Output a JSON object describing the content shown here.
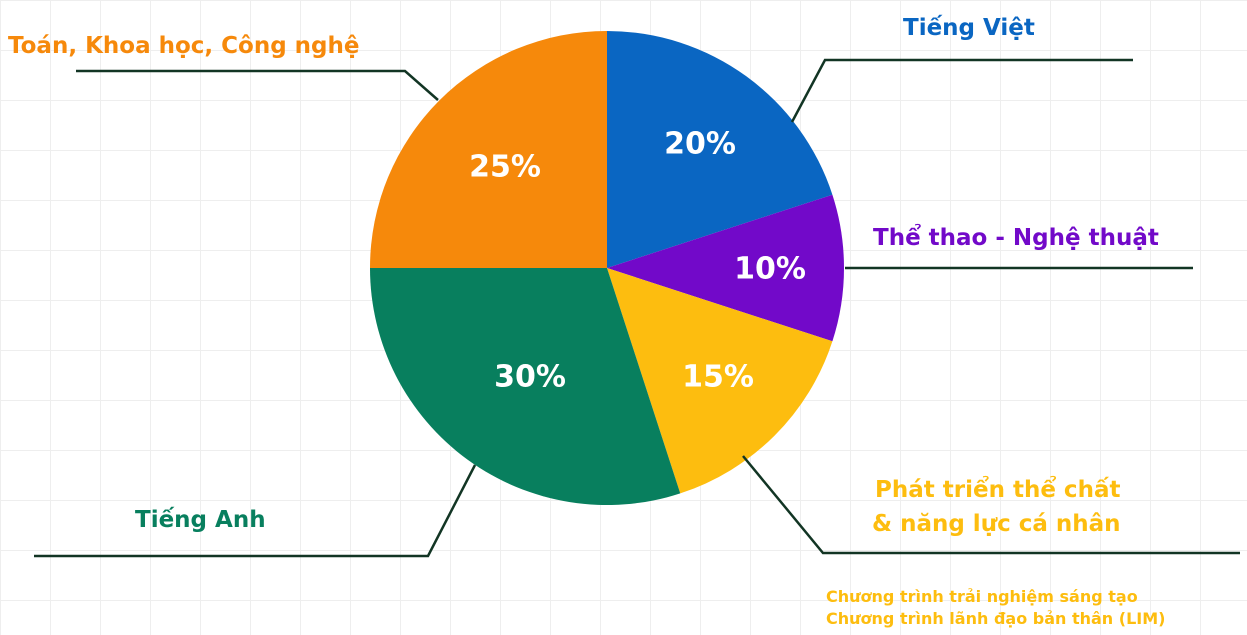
{
  "chart_data": {
    "type": "pie",
    "slices": [
      {
        "label": "Tiếng Việt",
        "value": 20,
        "value_label": "20%",
        "color": "#0a66c2"
      },
      {
        "label": "Thể thao - Nghệ thuật",
        "value": 10,
        "value_label": "10%",
        "color": "#7209c9"
      },
      {
        "label": "Phát triển thể chất & năng lực cá nhân",
        "label_lines": [
          "Phát triển thể chất",
          "& năng lực cá nhân"
        ],
        "value": 15,
        "value_label": "15%",
        "color": "#fdbd0f"
      },
      {
        "label": "Tiếng Anh",
        "value": 30,
        "value_label": "30%",
        "color": "#087f5e"
      },
      {
        "label": "Toán, Khoa học, Công nghệ",
        "value": 25,
        "value_label": "25%",
        "color": "#f6890b"
      }
    ],
    "annotation_lines": [
      "Chương trình trải nghiệm sáng tạo",
      "Chương trình lãnh đạo bản thân (LIM)"
    ],
    "leader_line_color": "#123524"
  }
}
